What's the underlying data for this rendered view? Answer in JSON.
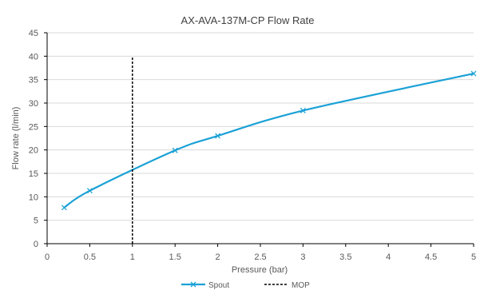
{
  "chart_data": {
    "type": "line",
    "title": "AX-AVA-137M-CP Flow Rate",
    "xlabel": "Pressure (bar)",
    "ylabel": "Flow rate (l/min)",
    "xlim": [
      0,
      5
    ],
    "ylim": [
      0,
      45
    ],
    "xticks": [
      "0",
      "0.5",
      "1",
      "1.5",
      "2",
      "2.5",
      "3",
      "3.5",
      "4",
      "4.5",
      "5"
    ],
    "yticks": [
      "0",
      "5",
      "10",
      "15",
      "20",
      "25",
      "30",
      "35",
      "40",
      "45"
    ],
    "grid": "horizontal",
    "legend_position": "bottom",
    "series": [
      {
        "name": "Spout",
        "color": "#1ba1d6",
        "style": "solid",
        "marker": "x",
        "x": [
          0.2,
          0.5,
          1.5,
          2,
          3,
          5
        ],
        "y": [
          7.7,
          11.3,
          19.9,
          23.0,
          28.4,
          36.3
        ]
      },
      {
        "name": "MOP",
        "color": "#000000",
        "style": "dashed",
        "marker": "none",
        "x": [
          1,
          1
        ],
        "y": [
          0,
          40
        ]
      }
    ]
  }
}
